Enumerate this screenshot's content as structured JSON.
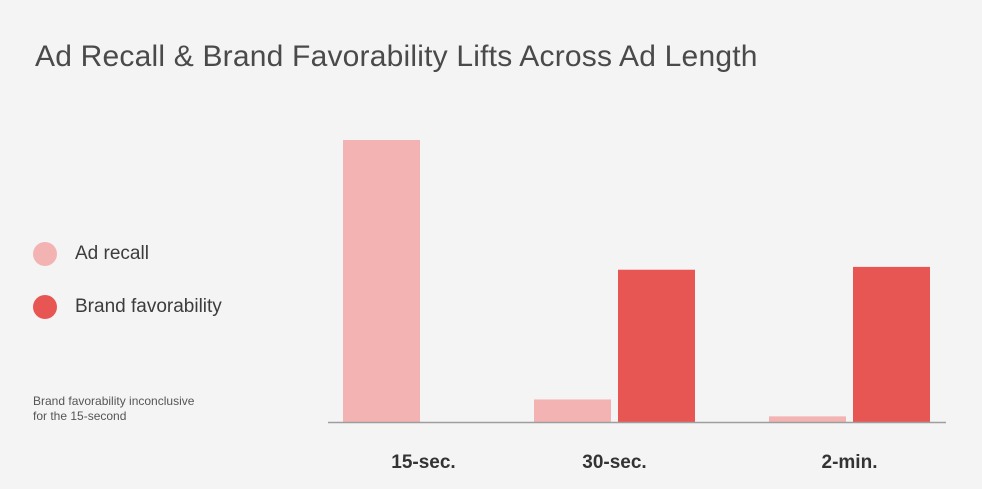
{
  "chart_data": {
    "type": "bar",
    "title": "Ad Recall & Brand Favorability Lifts Across Ad Length",
    "categories": [
      "15-sec.",
      "30-sec.",
      "2-min."
    ],
    "series": [
      {
        "name": "Ad recall",
        "color": "#f4b3b3",
        "values": [
          100,
          8,
          2
        ]
      },
      {
        "name": "Brand favorability",
        "color": "#e85654",
        "values": [
          null,
          54,
          55
        ]
      }
    ],
    "ylim": [
      0,
      100
    ],
    "grid": false,
    "legend_position": "left",
    "axis_color": "#9e9e9e"
  },
  "note": {
    "line1": "Brand favorability inconclusive",
    "line2": "for the 15-second"
  }
}
